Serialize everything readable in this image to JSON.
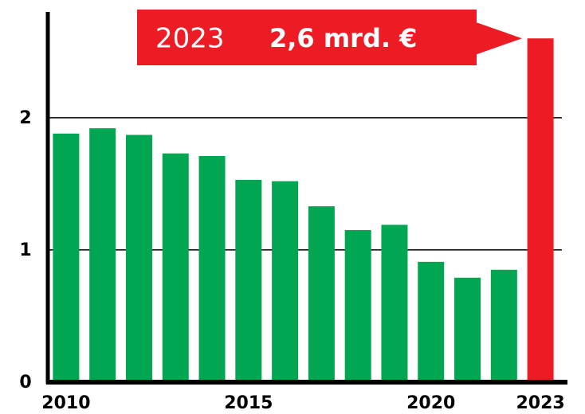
{
  "chart_data": {
    "type": "bar",
    "categories": [
      "2010",
      null,
      null,
      null,
      null,
      "2015",
      null,
      null,
      null,
      null,
      "2020",
      null,
      null,
      "2023"
    ],
    "values": [
      1.88,
      1.92,
      1.87,
      1.73,
      1.71,
      1.53,
      1.52,
      1.33,
      1.15,
      1.19,
      0.91,
      0.79,
      0.85,
      2.6
    ],
    "colors": [
      "#00a651",
      "#00a651",
      "#00a651",
      "#00a651",
      "#00a651",
      "#00a651",
      "#00a651",
      "#00a651",
      "#00a651",
      "#00a651",
      "#00a651",
      "#00a651",
      "#00a651",
      "#ed1c24"
    ],
    "ylim": [
      0,
      2.8
    ],
    "yticks": [
      0,
      1,
      2
    ],
    "grid": true,
    "annotation": {
      "year": "2023",
      "label": "2,6 mrd. €",
      "color": "#ed1c24"
    }
  }
}
